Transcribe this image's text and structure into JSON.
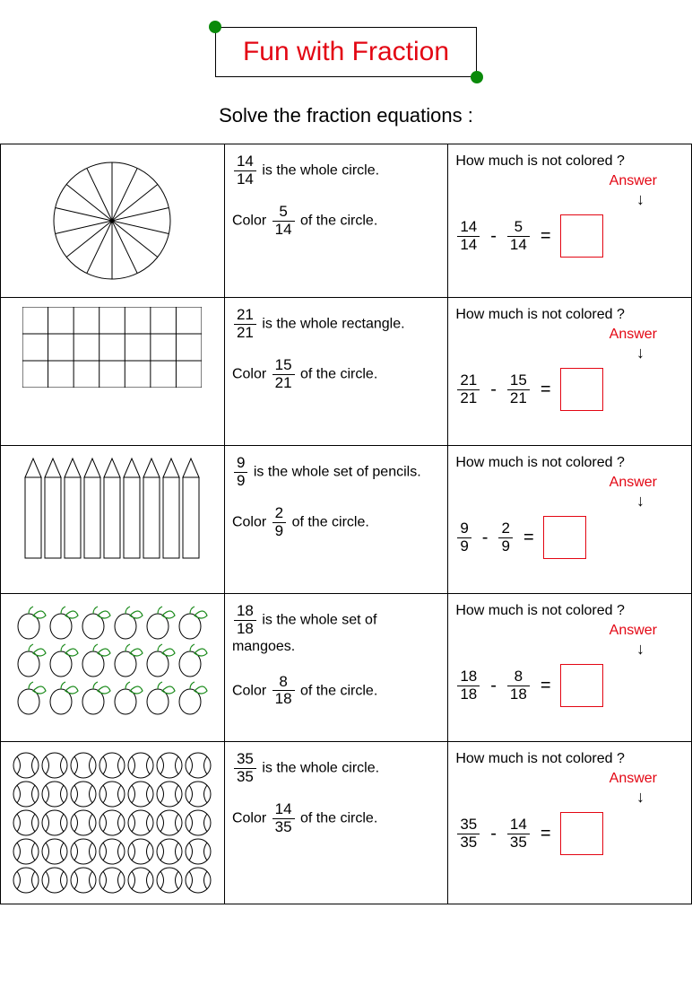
{
  "title": "Fun with Fraction",
  "subtitle": "Solve the fraction equations :",
  "colors": {
    "accent_red": "#e30613",
    "accent_green": "#0a8a0a",
    "text": "#000000",
    "bg": "#ffffff",
    "border": "#000000"
  },
  "fonts": {
    "title_size": 30,
    "subtitle_size": 22,
    "body_size": 16
  },
  "question_label": "How much is not colored ?",
  "answer_label": "Answer",
  "minus": "-",
  "equals": "=",
  "whole_prefix": "is the whole",
  "color_prefix": "Color",
  "of_circle_suffix": "of the circle.",
  "rows": [
    {
      "shape": "circle",
      "whole_n": "14",
      "whole_d": "14",
      "whole_text": "is the whole circle.",
      "color_n": "5",
      "color_d": "14",
      "eq_a_n": "14",
      "eq_a_d": "14",
      "eq_b_n": "5",
      "eq_b_d": "14",
      "pie_slices": 14
    },
    {
      "shape": "rectangle_grid",
      "whole_n": "21",
      "whole_d": "21",
      "whole_text": "is the whole rectangle.",
      "color_n": "15",
      "color_d": "21",
      "eq_a_n": "21",
      "eq_a_d": "21",
      "eq_b_n": "15",
      "eq_b_d": "21",
      "grid_rows": 3,
      "grid_cols": 7
    },
    {
      "shape": "pencils",
      "whole_n": "9",
      "whole_d": "9",
      "whole_text": "is the whole set of pencils.",
      "color_n": "2",
      "color_d": "9",
      "eq_a_n": "9",
      "eq_a_d": "9",
      "eq_b_n": "2",
      "eq_b_d": "9",
      "count": 9
    },
    {
      "shape": "mangoes",
      "whole_n": "18",
      "whole_d": "18",
      "whole_text": "is the whole set of mangoes.",
      "color_n": "8",
      "color_d": "18",
      "eq_a_n": "18",
      "eq_a_d": "18",
      "eq_b_n": "8",
      "eq_b_d": "18",
      "grid_rows": 3,
      "grid_cols": 6,
      "leaf_color": "#1a8a1a"
    },
    {
      "shape": "balls",
      "whole_n": "35",
      "whole_d": "35",
      "whole_text": "is the whole circle.",
      "color_n": "14",
      "color_d": "35",
      "eq_a_n": "35",
      "eq_a_d": "35",
      "eq_b_n": "14",
      "eq_b_d": "35",
      "grid_rows": 5,
      "grid_cols": 7
    }
  ]
}
